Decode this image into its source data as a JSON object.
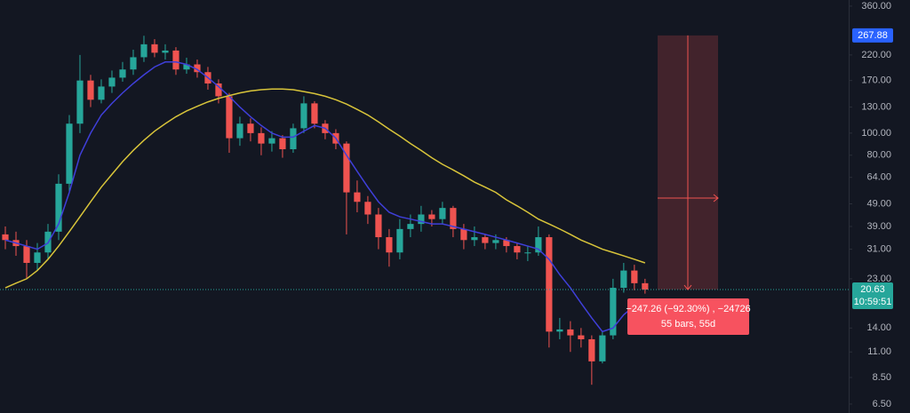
{
  "chart_data": {
    "type": "candlestick",
    "log_scale": true,
    "ylim": [
      5.94,
      383
    ],
    "xlim": [
      0,
      79.6
    ],
    "yticks": [
      {
        "value": 360,
        "label": "360.00"
      },
      {
        "value": 220,
        "label": "220.00"
      },
      {
        "value": 170,
        "label": "170.00"
      },
      {
        "value": 130,
        "label": "130.00"
      },
      {
        "value": 100,
        "label": "100.00"
      },
      {
        "value": 80,
        "label": "80.00"
      },
      {
        "value": 64,
        "label": "64.00"
      },
      {
        "value": 49,
        "label": "49.00"
      },
      {
        "value": 39,
        "label": "39.00"
      },
      {
        "value": 31,
        "label": "31.00"
      },
      {
        "value": 23,
        "label": "23.00"
      },
      {
        "value": 14,
        "label": "14.00"
      },
      {
        "value": 11,
        "label": "11.00"
      },
      {
        "value": 8.5,
        "label": "8.50"
      },
      {
        "value": 6.5,
        "label": "6.50"
      }
    ],
    "up_color": "#26a69a",
    "down_color": "#ef5350",
    "open": [
      36,
      34,
      32,
      27,
      30,
      37,
      60,
      110,
      170,
      140,
      160,
      175,
      190,
      215,
      245,
      225,
      230,
      190,
      200,
      185,
      165,
      145,
      95,
      110,
      100,
      90,
      95,
      85,
      105,
      135,
      110,
      100,
      90,
      55,
      50,
      44,
      35,
      30,
      38,
      40,
      44,
      42,
      47,
      38,
      34,
      35,
      33,
      34,
      32,
      30,
      30,
      35,
      13.5,
      13.8,
      13,
      12.5,
      10,
      13,
      21,
      25,
      22
    ],
    "high": [
      39,
      37,
      34,
      33,
      40,
      66,
      120,
      220,
      180,
      172,
      188,
      205,
      232,
      267,
      258,
      245,
      238,
      214,
      210,
      195,
      172,
      150,
      118,
      116,
      106,
      102,
      98,
      110,
      145,
      138,
      114,
      104,
      92,
      62,
      53,
      47,
      38,
      42,
      44,
      48,
      46,
      50,
      48,
      40,
      39,
      36,
      36,
      35,
      33,
      32,
      39,
      36,
      15.5,
      15,
      14,
      13,
      13.6,
      23,
      27,
      26.5,
      23
    ],
    "low": [
      31,
      29,
      23,
      25,
      28,
      34,
      55,
      100,
      130,
      135,
      150,
      168,
      180,
      205,
      215,
      210,
      180,
      182,
      175,
      155,
      135,
      82,
      88,
      92,
      80,
      83,
      78,
      82,
      100,
      105,
      94,
      85,
      36,
      45,
      40,
      31,
      26,
      28,
      35,
      37,
      39,
      40,
      35,
      31,
      32,
      31,
      31,
      30,
      28,
      27.5,
      29,
      11.5,
      12.5,
      11,
      11.5,
      7.9,
      9.8,
      12.5,
      20,
      20.5,
      19.8
    ],
    "close": [
      34,
      32,
      27,
      30,
      37,
      60,
      110,
      170,
      140,
      160,
      175,
      190,
      215,
      245,
      225,
      230,
      190,
      200,
      185,
      165,
      145,
      95,
      110,
      100,
      90,
      95,
      85,
      105,
      135,
      110,
      100,
      90,
      55,
      50,
      44,
      35,
      30,
      38,
      40,
      44,
      42,
      47,
      38,
      34,
      35,
      33,
      34,
      32,
      30,
      30,
      35,
      13.5,
      13.8,
      13,
      12.5,
      10,
      13,
      21,
      25,
      22,
      20.63
    ],
    "lines": [
      {
        "color": "#3f3fd9",
        "values": [
          34,
          33,
          32,
          31,
          33,
          40,
          55,
          80,
          100,
          120,
          135,
          150,
          165,
          180,
          195,
          205,
          205,
          200,
          190,
          175,
          160,
          145,
          130,
          118,
          108,
          100,
          96,
          96,
          102,
          108,
          105,
          95,
          80,
          68,
          58,
          50,
          45,
          43,
          42,
          41,
          40,
          40,
          39,
          38,
          37,
          36,
          35,
          34,
          33,
          32,
          31,
          28,
          24,
          21,
          18,
          15.5,
          13.5,
          14,
          16,
          17.5,
          18.5
        ]
      },
      {
        "color": "#d8c43a",
        "values": [
          21,
          22,
          23,
          25,
          28,
          32,
          37,
          43,
          50,
          58,
          66,
          75,
          84,
          93,
          102,
          110,
          118,
          125,
          131,
          137,
          142,
          146,
          150,
          153,
          155,
          156,
          156,
          155,
          152,
          149,
          145,
          140,
          134,
          127,
          120,
          112,
          104,
          97,
          90,
          84,
          78,
          73,
          69,
          65,
          61,
          58,
          55,
          51,
          48,
          45,
          42,
          40,
          38,
          36,
          34,
          32.5,
          31,
          30,
          29,
          28,
          27
        ]
      }
    ],
    "last_price": 20.63,
    "countdown": "10:59:51",
    "measure": {
      "top": 267.88,
      "bottom": 20.63,
      "label": "−247.26 (−92.30%) , −24726",
      "sublabel": "55 bars, 55d"
    }
  }
}
